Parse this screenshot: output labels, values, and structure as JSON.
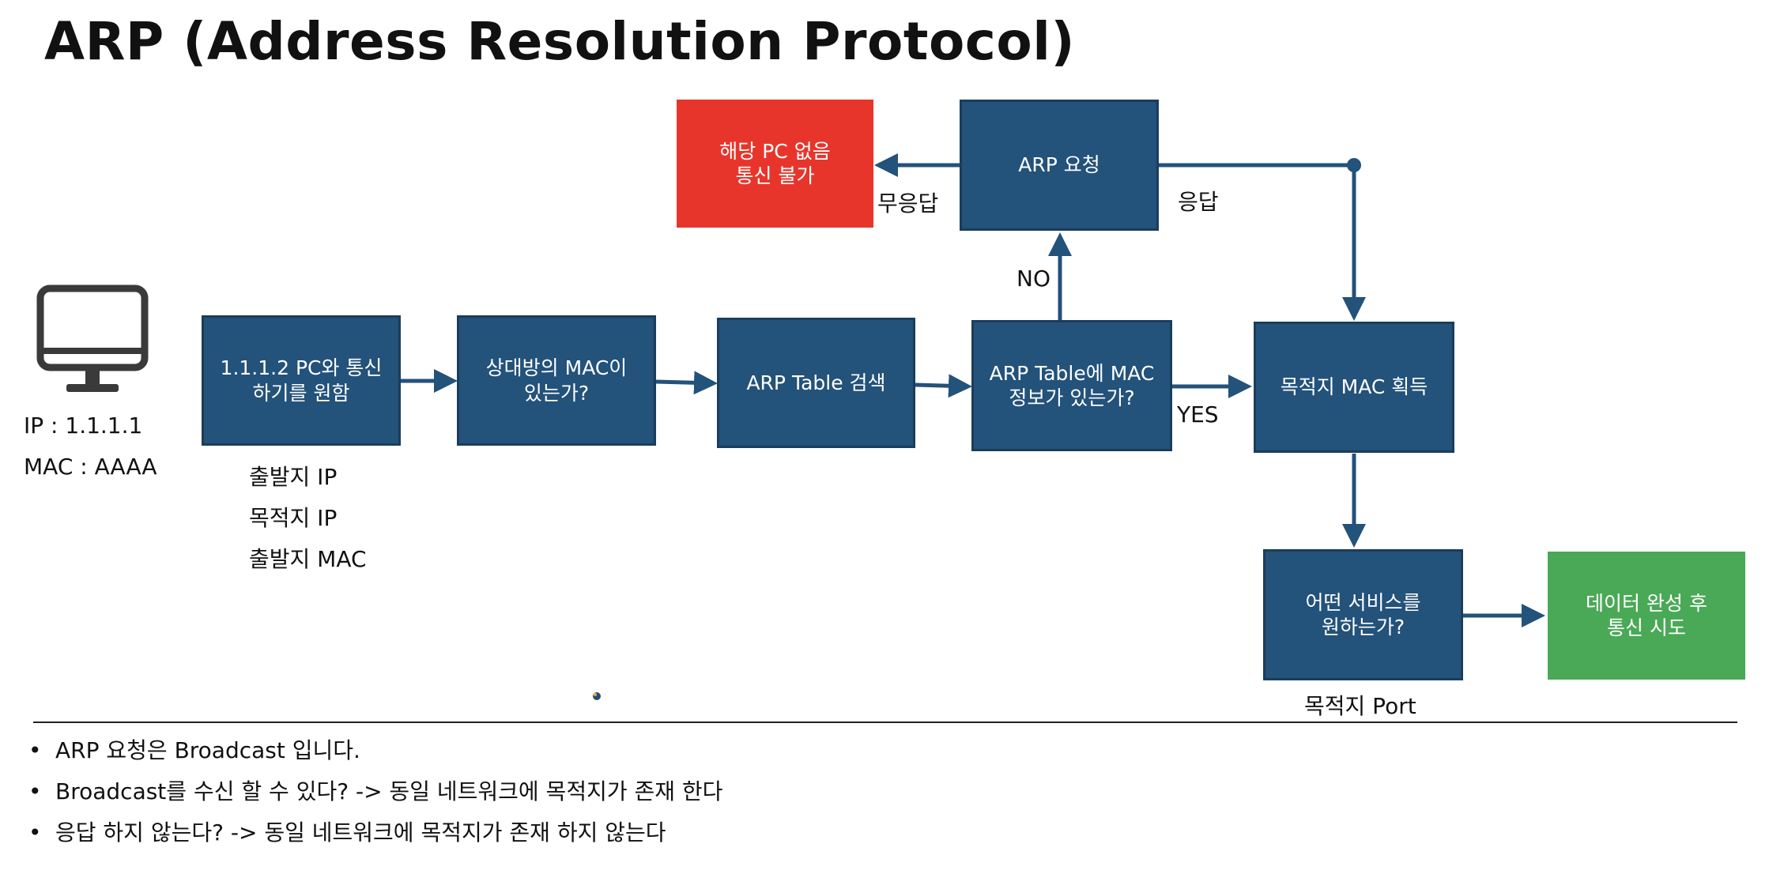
{
  "title": "ARP (Address Resolution Protocol)",
  "pc": {
    "icon": "monitor-icon",
    "ip": "IP : 1.1.1.1",
    "mac": "MAC : AAAA"
  },
  "boxes": {
    "want_comm": "1.1.1.2 PC와 통신\n하기를 원함",
    "has_mac": "상대방의 MAC이\n있는가?",
    "search_table": "ARP Table 검색",
    "table_has_mac": "ARP Table에 MAC\n정보가 있는가?",
    "arp_request": "ARP 요청",
    "no_pc": "해당 PC 없음\n통신 불가",
    "get_mac": "목적지 MAC 획득",
    "which_service": "어떤 서비스를\n원하는가?",
    "complete_data": "데이터 완성 후\n통신 시도"
  },
  "field_labels": [
    "출발지 IP",
    "목적지 IP",
    "출발지 MAC"
  ],
  "edge_labels": {
    "no_response": "무응답",
    "response": "응답",
    "no": "NO",
    "yes": "YES",
    "dest_port": "목적지 Port"
  },
  "notes": [
    "ARP 요청은 Broadcast 입니다.",
    "Broadcast를 수신 할 수 있다? -> 동일 네트워크에 목적지가 존재 한다",
    "응답 하지 않는다? -> 동일 네트워크에 목적지가 존재 하지 않는다"
  ],
  "colors": {
    "process": "#23527a",
    "error": "#e8352b",
    "success": "#4aa956",
    "arrow": "#23527a"
  }
}
